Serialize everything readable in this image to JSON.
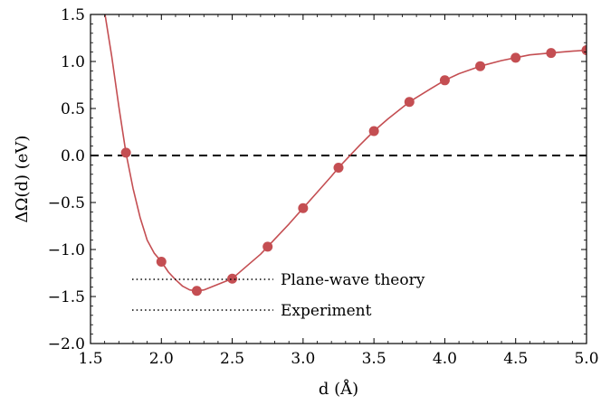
{
  "chart_data": {
    "type": "scatter",
    "xlabel": "d (Å)",
    "ylabel": "ΔΩ(d) (eV)",
    "xlim": [
      1.5,
      5.0
    ],
    "ylim": [
      -2.0,
      1.5
    ],
    "xticks": [
      "1.5",
      "2.0",
      "2.5",
      "3.0",
      "3.5",
      "4.0",
      "4.5",
      "5.0"
    ],
    "yticks": [
      "−2.0",
      "−1.5",
      "−1.0",
      "−0.5",
      "0.0",
      "0.5",
      "1.0",
      "1.5"
    ],
    "grid": false,
    "series": [
      {
        "type": "scatter",
        "color": "#c44e52",
        "x": [
          1.75,
          2.0,
          2.25,
          2.5,
          2.75,
          3.0,
          3.25,
          3.5,
          3.75,
          4.0,
          4.25,
          4.5,
          4.75,
          5.0
        ],
        "y": [
          0.03,
          -1.13,
          -1.44,
          -1.31,
          -0.97,
          -0.56,
          -0.13,
          0.26,
          0.57,
          0.8,
          0.95,
          1.04,
          1.09,
          1.12
        ]
      },
      {
        "type": "line",
        "color": "#c44e52",
        "x": [
          1.6,
          1.65,
          1.7,
          1.75,
          1.8,
          1.85,
          1.9,
          1.95,
          2.0,
          2.05,
          2.1,
          2.15,
          2.2,
          2.25,
          2.3,
          2.35,
          2.4,
          2.5,
          2.6,
          2.7,
          2.75,
          2.8,
          2.9,
          3.0,
          3.1,
          3.2,
          3.25,
          3.3,
          3.4,
          3.5,
          3.6,
          3.75,
          3.9,
          4.0,
          4.1,
          4.25,
          4.4,
          4.5,
          4.6,
          4.75,
          4.9,
          5.0
        ],
        "y": [
          1.52,
          1.05,
          0.52,
          0.03,
          -0.35,
          -0.66,
          -0.9,
          -1.04,
          -1.13,
          -1.24,
          -1.32,
          -1.39,
          -1.43,
          -1.44,
          -1.43,
          -1.4,
          -1.37,
          -1.31,
          -1.18,
          -1.05,
          -0.97,
          -0.89,
          -0.73,
          -0.56,
          -0.39,
          -0.22,
          -0.13,
          -0.05,
          0.11,
          0.26,
          0.39,
          0.57,
          0.71,
          0.8,
          0.87,
          0.95,
          1.01,
          1.04,
          1.07,
          1.09,
          1.11,
          1.12
        ]
      }
    ],
    "reference_lines": [
      {
        "y": 0.0,
        "style": "dashed",
        "color": "#000000"
      }
    ],
    "annotations": [
      {
        "text": "Plane-wave theory",
        "line_style": "dotted"
      },
      {
        "text": "Experiment",
        "line_style": "dotted"
      }
    ]
  }
}
